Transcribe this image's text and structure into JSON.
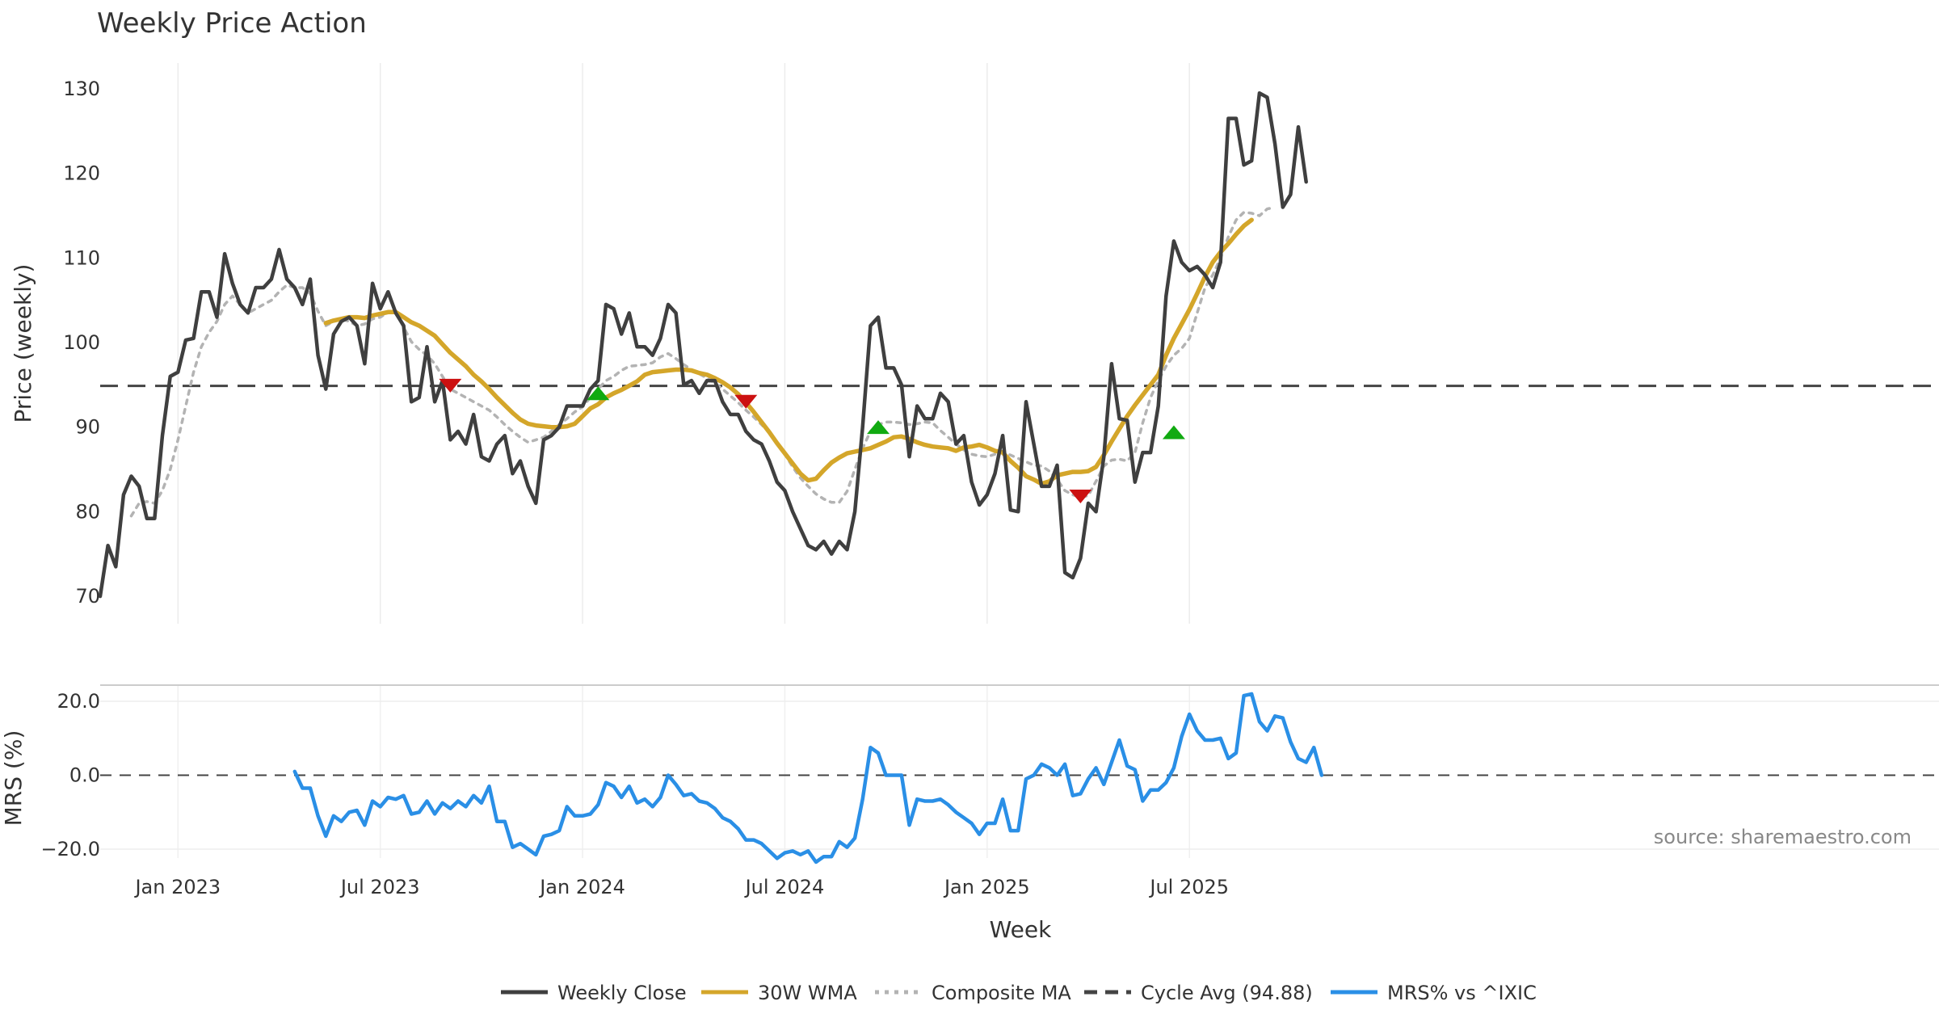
{
  "chart_data": {
    "title": "Weekly Price Action",
    "type": "line",
    "xlabel": "Week",
    "x_ticks": [
      "Jan 2023",
      "Jul 2023",
      "Jan 2024",
      "Jul 2024",
      "Jan 2025",
      "Jul 2025"
    ],
    "x_tick_index": [
      10,
      36,
      62,
      88,
      114,
      140
    ],
    "price_panel": {
      "ylabel": "Price (weekly)",
      "ylim": [
        67,
        133
      ],
      "yticks": [
        "70",
        "80",
        "90",
        "100",
        "110",
        "120",
        "130"
      ],
      "ytick_values": [
        70,
        80,
        90,
        100,
        110,
        120,
        130
      ],
      "series": [
        {
          "name": "Weekly Close",
          "color": "#3f3f3f",
          "style": "solid",
          "start_index": 0,
          "values": [
            70.0,
            76.0,
            73.5,
            82.0,
            84.2,
            83.0,
            79.2,
            79.2,
            89.0,
            96.0,
            96.5,
            100.3,
            100.5,
            106.0,
            106.0,
            103.0,
            110.5,
            107.0,
            104.5,
            103.5,
            106.5,
            106.5,
            107.5,
            111.0,
            107.5,
            106.5,
            104.5,
            107.5,
            98.5,
            94.5,
            101.0,
            102.5,
            103.0,
            102.0,
            97.5,
            107.0,
            104.0,
            106.0,
            103.5,
            102.0,
            93.0,
            93.5,
            99.5,
            93.0,
            95.5,
            88.5,
            89.5,
            88.0,
            91.5,
            86.5,
            86.0,
            88.0,
            89.0,
            84.5,
            86.0,
            83.0,
            81.0,
            88.5,
            89.0,
            90.0,
            92.5,
            92.5,
            92.5,
            94.5,
            95.5,
            104.5,
            104.0,
            101.0,
            103.5,
            99.5,
            99.5,
            98.5,
            100.5,
            104.5,
            103.5,
            95.0,
            95.5,
            94.0,
            95.5,
            95.5,
            93.0,
            91.5,
            91.5,
            89.5,
            88.5,
            88.0,
            86.0,
            83.5,
            82.5,
            80.0,
            78.0,
            76.0,
            75.5,
            76.5,
            75.0,
            76.5,
            75.5,
            80.0,
            90.0,
            102.0,
            103.0,
            97.0,
            97.0,
            95.0,
            86.5,
            92.5,
            91.0,
            91.0,
            94.0,
            93.0,
            88.0,
            89.0,
            83.5,
            80.8,
            82.0,
            84.5,
            89.0,
            80.2,
            80.0,
            93.0,
            88.0,
            83.0,
            83.0,
            85.5,
            72.8,
            72.2,
            74.5,
            81.0,
            80.0,
            86.5,
            97.5,
            91.0,
            90.8,
            83.5,
            87.0,
            87.0,
            92.5,
            105.5,
            112.0,
            109.5,
            108.5,
            109.0,
            108.0,
            106.5,
            109.5,
            126.5,
            126.5,
            121.0,
            121.5,
            129.5,
            129.0,
            123.5,
            116.0,
            117.5,
            125.5,
            119.0
          ]
        },
        {
          "name": "30W WMA",
          "color": "#d4a62a",
          "style": "solid",
          "start_index": 29,
          "values": [
            102.3,
            102.6,
            102.8,
            103.0,
            103.0,
            102.9,
            103.2,
            103.4,
            103.6,
            103.6,
            103.0,
            102.4,
            102.0,
            101.4,
            100.8,
            99.8,
            98.8,
            98.0,
            97.2,
            96.2,
            95.4,
            94.5,
            93.5,
            92.6,
            91.7,
            90.9,
            90.4,
            90.2,
            90.1,
            90.0,
            90.0,
            90.1,
            90.4,
            91.3,
            92.2,
            92.7,
            93.5,
            94.0,
            94.4,
            94.9,
            95.4,
            96.2,
            96.5,
            96.6,
            96.7,
            96.8,
            96.8,
            96.7,
            96.4,
            96.2,
            95.8,
            95.3,
            94.7,
            93.9,
            92.9,
            91.8,
            90.6,
            89.4,
            88.1,
            86.9,
            85.7,
            84.5,
            83.7,
            83.9,
            84.9,
            85.8,
            86.4,
            86.9,
            87.1,
            87.3,
            87.5,
            87.9,
            88.3,
            88.8,
            88.9,
            88.6,
            88.2,
            87.9,
            87.7,
            87.6,
            87.5,
            87.2,
            87.6,
            87.7,
            87.9,
            87.6,
            87.2,
            87.0,
            86.0,
            85.2,
            84.2,
            83.8,
            83.3,
            83.6,
            84.3,
            84.5,
            84.7,
            84.7,
            84.8,
            85.3,
            86.7,
            88.3,
            89.8,
            91.3,
            92.6,
            93.8,
            95.0,
            96.2,
            98.5,
            100.5,
            102.2,
            103.9,
            105.8,
            107.8,
            109.5,
            110.7,
            111.7,
            112.8,
            113.8,
            114.5
          ]
        },
        {
          "name": "Composite MA",
          "color": "#b3b3b3",
          "style": "dotted",
          "start_index": 4,
          "values": [
            79.5,
            81.0,
            81.2,
            81.0,
            82.5,
            85.0,
            88.5,
            92.5,
            96.5,
            99.5,
            101.2,
            102.5,
            104.5,
            105.5,
            104.5,
            103.5,
            104.0,
            104.5,
            105.0,
            106.0,
            106.8,
            106.5,
            106.5,
            105.8,
            103.7,
            102.0,
            102.5,
            102.8,
            102.5,
            102.0,
            102.2,
            102.8,
            103.0,
            103.6,
            103.6,
            101.8,
            100.1,
            99.2,
            98.5,
            97.5,
            96.0,
            94.5,
            94.0,
            93.5,
            93.0,
            92.5,
            92.0,
            91.2,
            90.3,
            89.5,
            88.8,
            88.2,
            88.5,
            88.8,
            89.5,
            90.3,
            91.0,
            91.8,
            92.4,
            93.5,
            94.5,
            95.5,
            96.0,
            96.7,
            97.2,
            97.3,
            97.4,
            97.6,
            98.3,
            98.7,
            98.1,
            97.4,
            96.8,
            96.3,
            95.8,
            95.2,
            94.5,
            93.7,
            92.9,
            92.0,
            91.2,
            90.3,
            89.4,
            88.1,
            86.8,
            85.3,
            84.0,
            83.0,
            82.1,
            81.5,
            81.1,
            81.1,
            82.4,
            85.0,
            87.5,
            89.5,
            90.3,
            90.6,
            90.6,
            90.5,
            90.3,
            90.4,
            90.6,
            90.5,
            89.6,
            88.8,
            88.0,
            87.3,
            86.8,
            86.6,
            86.5,
            86.8,
            87.0,
            86.7,
            86.3,
            85.9,
            85.5,
            85.4,
            84.8,
            83.8,
            82.5,
            82.0,
            81.7,
            81.9,
            83.6,
            85.4,
            86.1,
            86.2,
            86.0,
            87.0,
            90.5,
            93.5,
            95.5,
            97.2,
            98.5,
            99.3,
            100.5,
            103.5,
            106.5,
            108.0,
            110.0,
            112.5,
            114.5,
            115.4,
            115.3,
            115.0,
            115.8,
            116.0
          ]
        },
        {
          "name": "Cycle Avg (94.88)",
          "color": "#444444",
          "style": "dashed",
          "value": 94.88
        }
      ],
      "signals": [
        {
          "type": "sell",
          "index": 45,
          "value": 94.9,
          "color": "#cc1111"
        },
        {
          "type": "buy",
          "index": 64,
          "value": 94.0,
          "color": "#11aa11"
        },
        {
          "type": "sell",
          "index": 83,
          "value": 93.0,
          "color": "#cc1111"
        },
        {
          "type": "buy",
          "index": 100,
          "value": 90.0,
          "color": "#11aa11"
        },
        {
          "type": "sell",
          "index": 126,
          "value": 81.8,
          "color": "#cc1111"
        },
        {
          "type": "buy",
          "index": 138,
          "value": 89.4,
          "color": "#11aa11"
        }
      ]
    },
    "mrs_panel": {
      "ylabel": "MRS (%)",
      "ylim": [
        -28,
        24
      ],
      "yticks": [
        "20.0",
        "0.0",
        "−20.0"
      ],
      "ytick_values": [
        20,
        0,
        -20
      ],
      "zero_line": 0,
      "series": [
        {
          "name": "MRS% vs ^IXIC",
          "color": "#2a8fe6",
          "style": "solid",
          "start_index": 25,
          "values": [
            1.0,
            -3.5,
            -3.5,
            -11.0,
            -16.5,
            -11.0,
            -12.5,
            -10.0,
            -9.5,
            -13.5,
            -7.0,
            -8.5,
            -6.0,
            -6.5,
            -5.5,
            -10.5,
            -10.0,
            -7.0,
            -10.5,
            -7.5,
            -9.0,
            -7.0,
            -8.5,
            -5.5,
            -7.5,
            -3.0,
            -12.5,
            -12.5,
            -19.5,
            -18.5,
            -20.0,
            -21.5,
            -16.5,
            -16.0,
            -15.0,
            -8.5,
            -11.0,
            -11.0,
            -10.5,
            -8.0,
            -2.0,
            -3.0,
            -6.0,
            -3.0,
            -7.5,
            -6.5,
            -8.5,
            -6.0,
            0.0,
            -2.5,
            -5.5,
            -5.0,
            -7.0,
            -7.5,
            -9.0,
            -11.5,
            -12.5,
            -14.5,
            -17.5,
            -17.5,
            -18.5,
            -20.5,
            -22.5,
            -21.0,
            -20.5,
            -21.5,
            -20.5,
            -23.5,
            -22.0,
            -22.0,
            -18.0,
            -19.5,
            -17.0,
            -6.5,
            7.5,
            6.0,
            0.0,
            0.0,
            0.0,
            -13.5,
            -6.5,
            -7.0,
            -7.0,
            -6.5,
            -8.0,
            -10.0,
            -11.5,
            -13.0,
            -16.0,
            -13.0,
            -13.0,
            -6.5,
            -15.0,
            -15.0,
            -1.0,
            0.0,
            3.0,
            2.0,
            0.0,
            3.0,
            -5.5,
            -5.0,
            -1.0,
            2.0,
            -2.5,
            3.5,
            9.5,
            2.5,
            1.5,
            -7.0,
            -4.0,
            -4.0,
            -2.0,
            2.0,
            10.5,
            16.5,
            12.0,
            9.5,
            9.5,
            10.0,
            4.5,
            6.0,
            21.5,
            22.0,
            14.5,
            12.0,
            16.0,
            15.5,
            9.0,
            4.5,
            3.5,
            7.5,
            0.0
          ]
        }
      ]
    },
    "legend": [
      "Weekly Close",
      "30W WMA",
      "Composite MA",
      "Cycle Avg (94.88)",
      "MRS% vs ^IXIC"
    ],
    "legend_placement": "bottom-center",
    "annotation": "source: sharemaestro.com",
    "grid": true
  }
}
